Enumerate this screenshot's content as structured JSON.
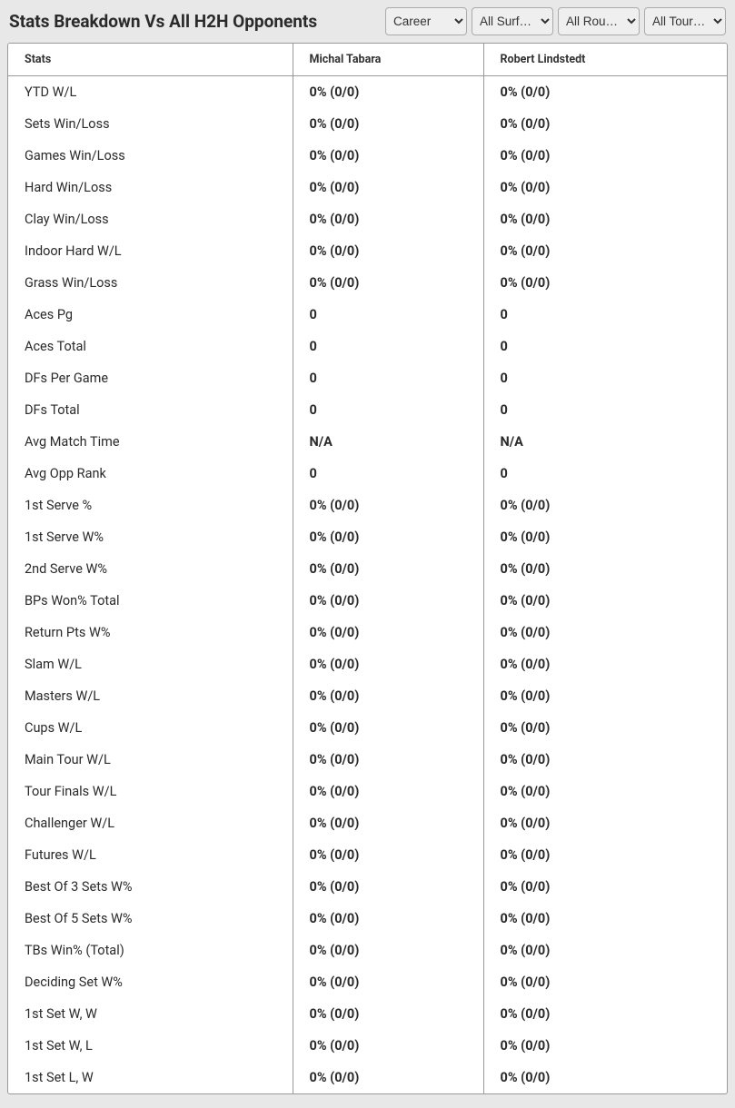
{
  "header": {
    "title": "Stats Breakdown Vs All H2H Opponents"
  },
  "filters": {
    "career": {
      "selected": "Career",
      "options": [
        "Career"
      ]
    },
    "surface": {
      "selected": "All Surf…",
      "options": [
        "All Surf…"
      ]
    },
    "rounds": {
      "selected": "All Rou…",
      "options": [
        "All Rou…"
      ]
    },
    "tour": {
      "selected": "All Tour…",
      "options": [
        "All Tour…"
      ]
    }
  },
  "table": {
    "columns": {
      "stats": "Stats",
      "player1": "Michal Tabara",
      "player2": "Robert Lindstedt"
    },
    "rows": [
      {
        "label": "YTD W/L",
        "p1": "0% (0/0)",
        "p2": "0% (0/0)"
      },
      {
        "label": "Sets Win/Loss",
        "p1": "0% (0/0)",
        "p2": "0% (0/0)"
      },
      {
        "label": "Games Win/Loss",
        "p1": "0% (0/0)",
        "p2": "0% (0/0)"
      },
      {
        "label": "Hard Win/Loss",
        "p1": "0% (0/0)",
        "p2": "0% (0/0)"
      },
      {
        "label": "Clay Win/Loss",
        "p1": "0% (0/0)",
        "p2": "0% (0/0)"
      },
      {
        "label": "Indoor Hard W/L",
        "p1": "0% (0/0)",
        "p2": "0% (0/0)"
      },
      {
        "label": "Grass Win/Loss",
        "p1": "0% (0/0)",
        "p2": "0% (0/0)"
      },
      {
        "label": "Aces Pg",
        "p1": "0",
        "p2": "0"
      },
      {
        "label": "Aces Total",
        "p1": "0",
        "p2": "0"
      },
      {
        "label": "DFs Per Game",
        "p1": "0",
        "p2": "0"
      },
      {
        "label": "DFs Total",
        "p1": "0",
        "p2": "0"
      },
      {
        "label": "Avg Match Time",
        "p1": "N/A",
        "p2": "N/A"
      },
      {
        "label": "Avg Opp Rank",
        "p1": "0",
        "p2": "0"
      },
      {
        "label": "1st Serve %",
        "p1": "0% (0/0)",
        "p2": "0% (0/0)"
      },
      {
        "label": "1st Serve W%",
        "p1": "0% (0/0)",
        "p2": "0% (0/0)"
      },
      {
        "label": "2nd Serve W%",
        "p1": "0% (0/0)",
        "p2": "0% (0/0)"
      },
      {
        "label": "BPs Won% Total",
        "p1": "0% (0/0)",
        "p2": "0% (0/0)"
      },
      {
        "label": "Return Pts W%",
        "p1": "0% (0/0)",
        "p2": "0% (0/0)"
      },
      {
        "label": "Slam W/L",
        "p1": "0% (0/0)",
        "p2": "0% (0/0)"
      },
      {
        "label": "Masters W/L",
        "p1": "0% (0/0)",
        "p2": "0% (0/0)"
      },
      {
        "label": "Cups W/L",
        "p1": "0% (0/0)",
        "p2": "0% (0/0)"
      },
      {
        "label": "Main Tour W/L",
        "p1": "0% (0/0)",
        "p2": "0% (0/0)"
      },
      {
        "label": "Tour Finals W/L",
        "p1": "0% (0/0)",
        "p2": "0% (0/0)"
      },
      {
        "label": "Challenger W/L",
        "p1": "0% (0/0)",
        "p2": "0% (0/0)"
      },
      {
        "label": "Futures W/L",
        "p1": "0% (0/0)",
        "p2": "0% (0/0)"
      },
      {
        "label": "Best Of 3 Sets W%",
        "p1": "0% (0/0)",
        "p2": "0% (0/0)"
      },
      {
        "label": "Best Of 5 Sets W%",
        "p1": "0% (0/0)",
        "p2": "0% (0/0)"
      },
      {
        "label": "TBs Win% (Total)",
        "p1": "0% (0/0)",
        "p2": "0% (0/0)"
      },
      {
        "label": "Deciding Set W%",
        "p1": "0% (0/0)",
        "p2": "0% (0/0)"
      },
      {
        "label": "1st Set W, W",
        "p1": "0% (0/0)",
        "p2": "0% (0/0)"
      },
      {
        "label": "1st Set W, L",
        "p1": "0% (0/0)",
        "p2": "0% (0/0)"
      },
      {
        "label": "1st Set L, W",
        "p1": "0% (0/0)",
        "p2": "0% (0/0)"
      }
    ]
  }
}
